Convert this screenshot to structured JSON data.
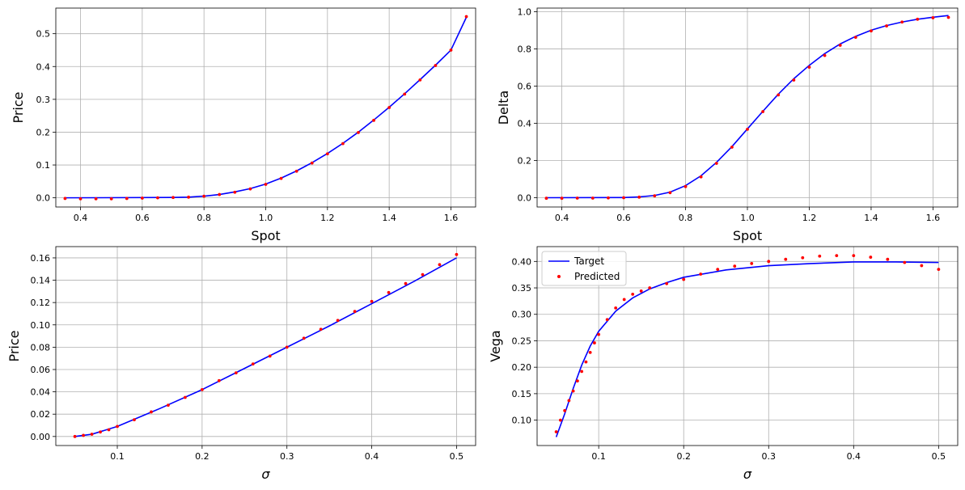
{
  "chart_data": [
    {
      "type": "line",
      "xlabel": "Spot",
      "ylabel": "Price",
      "xlim": [
        0.32,
        1.68
      ],
      "ylim": [
        -0.028,
        0.578
      ],
      "xticks": [
        0.4,
        0.6,
        0.8,
        1.0,
        1.2,
        1.4,
        1.6
      ],
      "xtick_labels": [
        "0.4",
        "0.6",
        "0.8",
        "1.0",
        "1.2",
        "1.4",
        "1.6"
      ],
      "yticks": [
        0.0,
        0.1,
        0.2,
        0.3,
        0.4,
        0.5
      ],
      "ytick_labels": [
        "0.0",
        "0.1",
        "0.2",
        "0.3",
        "0.4",
        "0.5"
      ],
      "grid": true,
      "legend": false,
      "series": [
        {
          "role": "target",
          "style": "line",
          "color": "#0000ff",
          "x": [
            0.35,
            0.7,
            0.75,
            0.8,
            0.85,
            0.9,
            0.95,
            1.0,
            1.05,
            1.1,
            1.15,
            1.2,
            1.25,
            1.3,
            1.35,
            1.4,
            1.45,
            1.5,
            1.55,
            1.6,
            1.65
          ],
          "y": [
            0.0,
            0.001,
            0.002,
            0.005,
            0.01,
            0.018,
            0.028,
            0.042,
            0.06,
            0.082,
            0.107,
            0.135,
            0.166,
            0.2,
            0.237,
            0.276,
            0.317,
            0.36,
            0.404,
            0.45,
            0.55
          ]
        },
        {
          "role": "predicted",
          "style": "scatter",
          "color": "#ff0000",
          "x": [
            0.35,
            0.4,
            0.45,
            0.5,
            0.55,
            0.6,
            0.65,
            0.7,
            0.75,
            0.8,
            0.85,
            0.9,
            0.95,
            1.0,
            1.05,
            1.1,
            1.15,
            1.2,
            1.25,
            1.3,
            1.35,
            1.4,
            1.45,
            1.5,
            1.55,
            1.6,
            1.65
          ],
          "y": [
            -0.002,
            -0.003,
            -0.003,
            -0.003,
            -0.002,
            -0.001,
            0.0,
            0.001,
            0.002,
            0.005,
            0.01,
            0.017,
            0.027,
            0.041,
            0.059,
            0.081,
            0.106,
            0.134,
            0.165,
            0.199,
            0.236,
            0.275,
            0.316,
            0.359,
            0.403,
            0.45,
            0.552
          ]
        }
      ]
    },
    {
      "type": "line",
      "xlabel": "Spot",
      "ylabel": "Delta",
      "xlim": [
        0.32,
        1.68
      ],
      "ylim": [
        -0.05,
        1.02
      ],
      "xticks": [
        0.4,
        0.6,
        0.8,
        1.0,
        1.2,
        1.4,
        1.6
      ],
      "xtick_labels": [
        "0.4",
        "0.6",
        "0.8",
        "1.0",
        "1.2",
        "1.4",
        "1.6"
      ],
      "yticks": [
        0.0,
        0.2,
        0.4,
        0.6,
        0.8,
        1.0
      ],
      "ytick_labels": [
        "0.0",
        "0.2",
        "0.4",
        "0.6",
        "0.8",
        "1.0"
      ],
      "grid": true,
      "legend": false,
      "series": [
        {
          "role": "target",
          "style": "line",
          "color": "#0000ff",
          "x": [
            0.35,
            0.6,
            0.65,
            0.7,
            0.75,
            0.8,
            0.85,
            0.9,
            0.95,
            1.0,
            1.05,
            1.1,
            1.15,
            1.2,
            1.25,
            1.3,
            1.35,
            1.4,
            1.45,
            1.5,
            1.55,
            1.6,
            1.65
          ],
          "y": [
            0.0,
            0.001,
            0.004,
            0.012,
            0.03,
            0.065,
            0.118,
            0.19,
            0.275,
            0.37,
            0.465,
            0.557,
            0.64,
            0.712,
            0.775,
            0.827,
            0.868,
            0.901,
            0.926,
            0.945,
            0.96,
            0.971,
            0.98
          ]
        },
        {
          "role": "predicted",
          "style": "scatter",
          "color": "#ff0000",
          "x": [
            0.35,
            0.4,
            0.45,
            0.5,
            0.55,
            0.6,
            0.65,
            0.7,
            0.75,
            0.8,
            0.85,
            0.9,
            0.95,
            1.0,
            1.05,
            1.1,
            1.15,
            1.2,
            1.25,
            1.3,
            1.35,
            1.4,
            1.45,
            1.5,
            1.55,
            1.6,
            1.65
          ],
          "y": [
            -0.003,
            -0.003,
            -0.002,
            -0.002,
            -0.001,
            0.0,
            0.003,
            0.01,
            0.027,
            0.06,
            0.112,
            0.185,
            0.272,
            0.368,
            0.463,
            0.553,
            0.633,
            0.702,
            0.765,
            0.82,
            0.863,
            0.897,
            0.924,
            0.945,
            0.96,
            0.968,
            0.97
          ]
        }
      ]
    },
    {
      "type": "line",
      "xlabel": "σ",
      "ylabel": "Price",
      "xlim": [
        0.0275,
        0.5225
      ],
      "ylim": [
        -0.0081,
        0.1701
      ],
      "xticks": [
        0.1,
        0.2,
        0.3,
        0.4,
        0.5
      ],
      "xtick_labels": [
        "0.1",
        "0.2",
        "0.3",
        "0.4",
        "0.5"
      ],
      "yticks": [
        0.0,
        0.02,
        0.04,
        0.06,
        0.08,
        0.1,
        0.12,
        0.14,
        0.16
      ],
      "ytick_labels": [
        "0.00",
        "0.02",
        "0.04",
        "0.06",
        "0.08",
        "0.10",
        "0.12",
        "0.14",
        "0.16"
      ],
      "grid": true,
      "legend": false,
      "series": [
        {
          "role": "target",
          "style": "line",
          "color": "#0000ff",
          "x": [
            0.05,
            0.07,
            0.1,
            0.15,
            0.2,
            0.25,
            0.3,
            0.35,
            0.4,
            0.45,
            0.5
          ],
          "y": [
            0.0,
            0.002,
            0.009,
            0.025,
            0.042,
            0.061,
            0.08,
            0.099,
            0.119,
            0.139,
            0.16
          ]
        },
        {
          "role": "predicted",
          "style": "scatter",
          "color": "#ff0000",
          "x": [
            0.05,
            0.06,
            0.07,
            0.08,
            0.09,
            0.1,
            0.12,
            0.14,
            0.16,
            0.18,
            0.2,
            0.22,
            0.24,
            0.26,
            0.28,
            0.3,
            0.32,
            0.34,
            0.36,
            0.38,
            0.4,
            0.42,
            0.44,
            0.46,
            0.48,
            0.5
          ],
          "y": [
            0.0,
            0.001,
            0.002,
            0.004,
            0.006,
            0.009,
            0.015,
            0.022,
            0.028,
            0.035,
            0.042,
            0.05,
            0.057,
            0.065,
            0.072,
            0.08,
            0.088,
            0.096,
            0.104,
            0.112,
            0.121,
            0.129,
            0.137,
            0.145,
            0.154,
            0.163
          ]
        }
      ]
    },
    {
      "type": "line",
      "xlabel": "σ",
      "ylabel": "Vega",
      "xlim": [
        0.0275,
        0.5225
      ],
      "ylim": [
        0.052,
        0.428
      ],
      "xticks": [
        0.1,
        0.2,
        0.3,
        0.4,
        0.5
      ],
      "xtick_labels": [
        "0.1",
        "0.2",
        "0.3",
        "0.4",
        "0.5"
      ],
      "yticks": [
        0.1,
        0.15,
        0.2,
        0.25,
        0.3,
        0.35,
        0.4
      ],
      "ytick_labels": [
        "0.10",
        "0.15",
        "0.20",
        "0.25",
        "0.30",
        "0.35",
        "0.40"
      ],
      "grid": true,
      "legend": true,
      "legend_position": "top-left",
      "series": [
        {
          "name": "Target",
          "role": "target",
          "style": "line",
          "color": "#0000ff",
          "x": [
            0.05,
            0.06,
            0.07,
            0.08,
            0.09,
            0.1,
            0.12,
            0.14,
            0.16,
            0.18,
            0.2,
            0.25,
            0.3,
            0.35,
            0.4,
            0.45,
            0.5
          ],
          "y": [
            0.068,
            0.112,
            0.16,
            0.204,
            0.24,
            0.268,
            0.306,
            0.331,
            0.348,
            0.36,
            0.37,
            0.384,
            0.392,
            0.396,
            0.399,
            0.399,
            0.398
          ]
        },
        {
          "name": "Predicted",
          "role": "predicted",
          "style": "scatter",
          "color": "#ff0000",
          "x": [
            0.05,
            0.055,
            0.06,
            0.065,
            0.07,
            0.075,
            0.08,
            0.085,
            0.09,
            0.095,
            0.1,
            0.11,
            0.12,
            0.13,
            0.14,
            0.15,
            0.16,
            0.18,
            0.2,
            0.22,
            0.24,
            0.26,
            0.28,
            0.3,
            0.32,
            0.34,
            0.36,
            0.38,
            0.4,
            0.42,
            0.44,
            0.46,
            0.48,
            0.5
          ],
          "y": [
            0.078,
            0.1,
            0.118,
            0.137,
            0.155,
            0.174,
            0.192,
            0.21,
            0.228,
            0.246,
            0.262,
            0.29,
            0.312,
            0.328,
            0.338,
            0.344,
            0.35,
            0.358,
            0.366,
            0.376,
            0.385,
            0.391,
            0.396,
            0.4,
            0.404,
            0.407,
            0.41,
            0.411,
            0.411,
            0.408,
            0.404,
            0.398,
            0.392,
            0.385
          ]
        }
      ]
    }
  ]
}
